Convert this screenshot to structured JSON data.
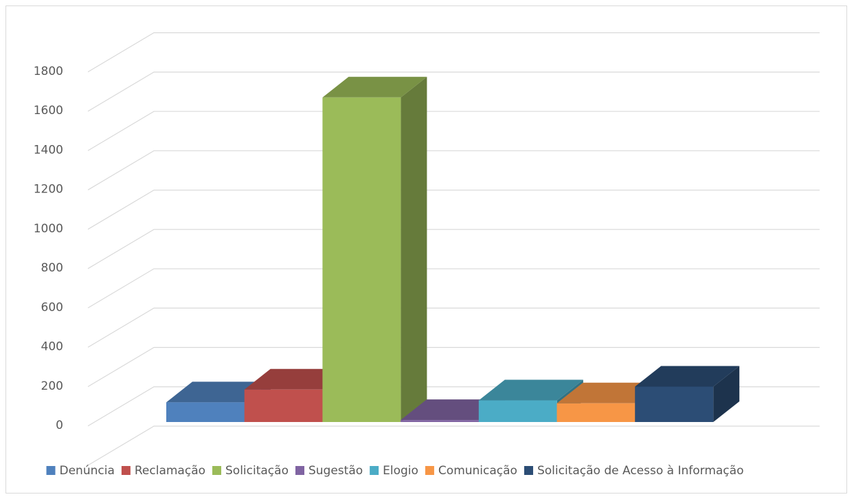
{
  "chart_data": {
    "type": "bar",
    "style": "3d-column",
    "categories": [
      "Denúncia",
      "Reclamação",
      "Solicitação",
      "Sugestão",
      "Elogio",
      "Comunicação",
      "Solicitação de Acesso à Informação"
    ],
    "values": [
      100,
      165,
      1650,
      10,
      110,
      95,
      180
    ],
    "colors": [
      "#4f81bd",
      "#c0504d",
      "#9bbb59",
      "#8064a2",
      "#4bacc6",
      "#f79646",
      "#2c4d75"
    ],
    "yticks": [
      "0",
      "200",
      "400",
      "600",
      "800",
      "1000",
      "1200",
      "1400",
      "1600",
      "1800"
    ],
    "ylim": [
      0,
      2000
    ],
    "grid": true,
    "legend_position": "bottom",
    "title": "",
    "xlabel": "",
    "ylabel": ""
  }
}
